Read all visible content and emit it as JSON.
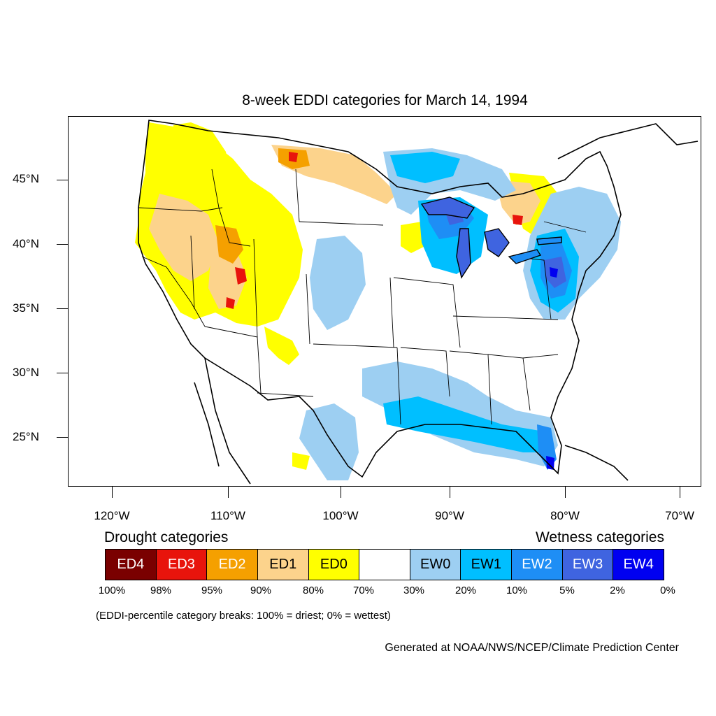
{
  "title": "8-week EDDI categories for March 14, 1994",
  "lat_labels": [
    "45°N",
    "40°N",
    "35°N",
    "30°N",
    "25°N"
  ],
  "lon_labels": [
    "120°W",
    "110°W",
    "100°W",
    "90°W",
    "80°W",
    "70°W"
  ],
  "legend": {
    "drought_title": "Drought categories",
    "wetness_title": "Wetness categories",
    "categories": [
      {
        "label": "ED4",
        "color": "#7a0000",
        "text_color": "#ffffff"
      },
      {
        "label": "ED3",
        "color": "#e8140c",
        "text_color": "#ffffff"
      },
      {
        "label": "ED2",
        "color": "#f5a000",
        "text_color": "#ffffff"
      },
      {
        "label": "ED1",
        "color": "#fcd38c",
        "text_color": "#000000"
      },
      {
        "label": "ED0",
        "color": "#ffff00",
        "text_color": "#000000"
      },
      {
        "label": "",
        "color": "#ffffff",
        "text_color": "#000000"
      },
      {
        "label": "EW0",
        "color": "#9dcff2",
        "text_color": "#000000"
      },
      {
        "label": "EW1",
        "color": "#00bfff",
        "text_color": "#000000"
      },
      {
        "label": "EW2",
        "color": "#1e8ef5",
        "text_color": "#ffffff"
      },
      {
        "label": "EW3",
        "color": "#3f64e0",
        "text_color": "#ffffff"
      },
      {
        "label": "EW4",
        "color": "#0000f0",
        "text_color": "#ffffff"
      }
    ],
    "percentiles": [
      "100%",
      "98%",
      "95%",
      "90%",
      "80%",
      "70%",
      "30%",
      "20%",
      "10%",
      "5%",
      "2%",
      "0%"
    ],
    "note": "(EDDI-percentile category breaks: 100% = driest; 0% = wettest)"
  },
  "credit": "Generated at NOAA/NWS/NCEP/Climate Prediction Center",
  "colors": {
    "ED4": "#7a0000",
    "ED3": "#e8140c",
    "ED2": "#f5a000",
    "ED1": "#fcd38c",
    "ED0": "#ffff00",
    "EW0": "#9dcff2",
    "EW1": "#00bfff",
    "EW2": "#1e8ef5",
    "EW3": "#3f64e0",
    "EW4": "#0000f0"
  }
}
